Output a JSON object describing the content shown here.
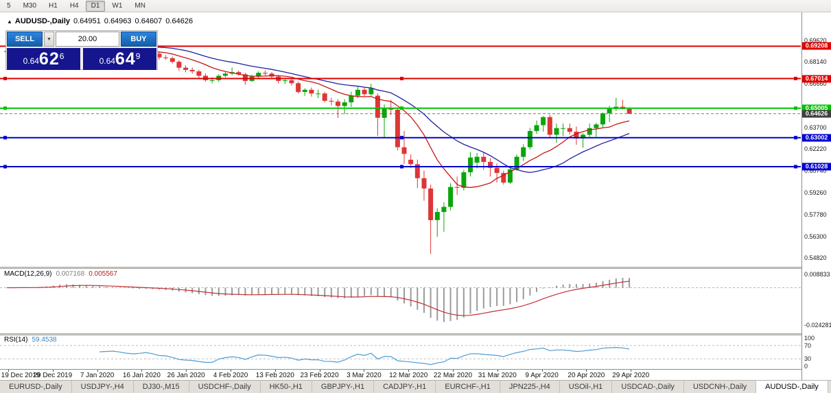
{
  "toolbar": {
    "periods": [
      "5",
      "M30",
      "H1",
      "H4",
      "D1",
      "W1",
      "MN"
    ],
    "active": "D1"
  },
  "header": {
    "symbol": "AUDUSD-,Daily",
    "open": "0.64951",
    "high": "0.64963",
    "low": "0.64607",
    "close": "0.64626"
  },
  "trade_panel": {
    "sell": "SELL",
    "buy": "BUY",
    "volume": "20.00",
    "sell_price": {
      "base": "0.64",
      "big": "62",
      "sup": "6"
    },
    "buy_price": {
      "base": "0.64",
      "big": "64",
      "sup": "9"
    }
  },
  "chart_data": {
    "type": "candlestick",
    "symbol": "AUDUSD",
    "timeframe": "Daily",
    "colors": {
      "up": "#0BA50B",
      "down": "#DE3636",
      "bid_line": "#777777"
    },
    "y_axis": {
      "range": [
        0.5423,
        0.7151
      ],
      "labels": [
        "0.69620",
        "0.68140",
        "0.66660",
        "0.63700",
        "0.62220",
        "0.60740",
        "0.59260",
        "0.57780",
        "0.56300",
        "0.54820"
      ]
    },
    "x_labels": [
      "19 Dec 2019",
      "29 Dec 2019",
      "7 Jan 2020",
      "16 Jan 2020",
      "26 Jan 2020",
      "4 Feb 2020",
      "13 Feb 2020",
      "23 Feb 2020",
      "3 Mar 2020",
      "12 Mar 2020",
      "22 Mar 2020",
      "31 Mar 2020",
      "9 Apr 2020",
      "20 Apr 2020",
      "29 Apr 2020"
    ],
    "hlines": [
      {
        "price": 0.69208,
        "label": "0.69208",
        "color": "#E00000",
        "handles": false
      },
      {
        "price": 0.67014,
        "label": "0.67014",
        "color": "#E00000",
        "handles": true
      },
      {
        "price": 0.65005,
        "label": "0.65005",
        "color": "#00C400",
        "handles": true
      },
      {
        "price": 0.63002,
        "label": "0.63002",
        "color": "#0000D0",
        "handles": true
      },
      {
        "price": 0.61028,
        "label": "0.61028",
        "color": "#0000D0",
        "handles": true
      }
    ],
    "bid": {
      "price": 0.64626,
      "label": "0.64626",
      "color": "#3F3F3F"
    },
    "moving_averages": [
      {
        "period": 10,
        "color": "#C81414"
      },
      {
        "period": 21,
        "color": "#2020A0"
      }
    ],
    "macd": {
      "label": "MACD(12,26,9)",
      "main_value": "0.007168",
      "signal_value": "0.005567",
      "params": [
        12,
        26,
        9
      ],
      "axis_labels": [
        "0.008833",
        "-0.024281"
      ],
      "range": [
        -0.0295,
        0.0122
      ],
      "histogram_color": "#9a9a9a",
      "signal_color": "#C03030"
    },
    "rsi": {
      "label": "RSI(14)",
      "value": "59.4538",
      "period": 14,
      "levels": [
        100,
        70,
        30,
        0
      ],
      "dashed_levels": [
        70,
        30
      ],
      "color": "#4B9CD3",
      "range": [
        0,
        100
      ]
    },
    "candles": [
      [
        0.688,
        0.6897,
        0.6862,
        0.689
      ],
      [
        0.689,
        0.6906,
        0.6878,
        0.6895
      ],
      [
        0.6895,
        0.6916,
        0.6886,
        0.6905
      ],
      [
        0.6905,
        0.6917,
        0.6884,
        0.6898
      ],
      [
        0.6898,
        0.6921,
        0.6889,
        0.691
      ],
      [
        0.691,
        0.6936,
        0.6901,
        0.6925
      ],
      [
        0.6925,
        0.6951,
        0.6914,
        0.694
      ],
      [
        0.694,
        0.6996,
        0.6931,
        0.6988
      ],
      [
        0.6988,
        0.7026,
        0.6979,
        0.701
      ],
      [
        0.701,
        0.7021,
        0.6973,
        0.6985
      ],
      [
        0.6985,
        0.6991,
        0.6938,
        0.695
      ],
      [
        0.695,
        0.6971,
        0.6924,
        0.6935
      ],
      [
        0.6935,
        0.6956,
        0.6919,
        0.693
      ],
      [
        0.693,
        0.6941,
        0.6893,
        0.6905
      ],
      [
        0.6905,
        0.6921,
        0.6884,
        0.6895
      ],
      [
        0.6895,
        0.6916,
        0.6884,
        0.69
      ],
      [
        0.69,
        0.6921,
        0.6889,
        0.6905
      ],
      [
        0.6905,
        0.6916,
        0.6879,
        0.6895
      ],
      [
        0.6895,
        0.6906,
        0.6869,
        0.688
      ],
      [
        0.688,
        0.6891,
        0.6854,
        0.687
      ],
      [
        0.687,
        0.6891,
        0.6859,
        0.6875
      ],
      [
        0.6875,
        0.6896,
        0.6864,
        0.6885
      ],
      [
        0.6885,
        0.6896,
        0.6859,
        0.687
      ],
      [
        0.687,
        0.6881,
        0.6829,
        0.6845
      ],
      [
        0.6845,
        0.6861,
        0.6829,
        0.684
      ],
      [
        0.684,
        0.6851,
        0.6804,
        0.6815
      ],
      [
        0.6815,
        0.6826,
        0.6754,
        0.6775
      ],
      [
        0.6775,
        0.6791,
        0.6744,
        0.676
      ],
      [
        0.676,
        0.6776,
        0.6734,
        0.675
      ],
      [
        0.675,
        0.6761,
        0.6699,
        0.672
      ],
      [
        0.672,
        0.6736,
        0.6681,
        0.669
      ],
      [
        0.669,
        0.6711,
        0.6669,
        0.669
      ],
      [
        0.669,
        0.6731,
        0.6679,
        0.672
      ],
      [
        0.672,
        0.6751,
        0.6709,
        0.6735
      ],
      [
        0.6735,
        0.6776,
        0.6724,
        0.6745
      ],
      [
        0.6745,
        0.6756,
        0.6719,
        0.673
      ],
      [
        0.673,
        0.6741,
        0.6659,
        0.6685
      ],
      [
        0.6685,
        0.6726,
        0.6679,
        0.6715
      ],
      [
        0.6715,
        0.6751,
        0.6704,
        0.674
      ],
      [
        0.674,
        0.6756,
        0.6719,
        0.6735
      ],
      [
        0.6735,
        0.6746,
        0.6704,
        0.6715
      ],
      [
        0.6715,
        0.6726,
        0.6669,
        0.6685
      ],
      [
        0.6685,
        0.6701,
        0.6664,
        0.669
      ],
      [
        0.669,
        0.6701,
        0.6654,
        0.667
      ],
      [
        0.667,
        0.6681,
        0.6599,
        0.661
      ],
      [
        0.661,
        0.6636,
        0.6584,
        0.6625
      ],
      [
        0.6625,
        0.6641,
        0.6579,
        0.66
      ],
      [
        0.66,
        0.6626,
        0.6569,
        0.66
      ],
      [
        0.66,
        0.6611,
        0.6539,
        0.655
      ],
      [
        0.655,
        0.6571,
        0.6519,
        0.6545
      ],
      [
        0.6545,
        0.6561,
        0.6434,
        0.6515
      ],
      [
        0.6515,
        0.6561,
        0.6459,
        0.654
      ],
      [
        0.654,
        0.6611,
        0.6509,
        0.6585
      ],
      [
        0.6585,
        0.6646,
        0.6569,
        0.6625
      ],
      [
        0.6625,
        0.6641,
        0.6584,
        0.6595
      ],
      [
        0.6595,
        0.6666,
        0.6584,
        0.6635
      ],
      [
        0.6585,
        0.6601,
        0.6313,
        0.6435
      ],
      [
        0.6435,
        0.6526,
        0.6301,
        0.65
      ],
      [
        0.65,
        0.6556,
        0.6454,
        0.649
      ],
      [
        0.649,
        0.6501,
        0.6214,
        0.6235
      ],
      [
        0.6235,
        0.6346,
        0.6123,
        0.619
      ],
      [
        0.615,
        0.6186,
        0.6094,
        0.612
      ],
      [
        0.612,
        0.6151,
        0.5958,
        0.6025
      ],
      [
        0.6025,
        0.6076,
        0.5872,
        0.5955
      ],
      [
        0.5955,
        0.5981,
        0.551,
        0.574
      ],
      [
        0.574,
        0.5821,
        0.5626,
        0.5795
      ],
      [
        0.5795,
        0.5861,
        0.5661,
        0.583
      ],
      [
        0.583,
        0.5991,
        0.5806,
        0.5965
      ],
      [
        0.5965,
        0.6036,
        0.5911,
        0.596
      ],
      [
        0.596,
        0.6081,
        0.5941,
        0.6065
      ],
      [
        0.6065,
        0.6201,
        0.6036,
        0.6165
      ],
      [
        0.613,
        0.6196,
        0.6091,
        0.617
      ],
      [
        0.617,
        0.6201,
        0.6081,
        0.6135
      ],
      [
        0.6135,
        0.6161,
        0.6036,
        0.6095
      ],
      [
        0.6095,
        0.6126,
        0.5996,
        0.606
      ],
      [
        0.606,
        0.6076,
        0.5981,
        0.5995
      ],
      [
        0.5995,
        0.6096,
        0.5986,
        0.6085
      ],
      [
        0.6085,
        0.6186,
        0.6076,
        0.617
      ],
      [
        0.617,
        0.6256,
        0.6141,
        0.6235
      ],
      [
        0.6235,
        0.6366,
        0.6221,
        0.6345
      ],
      [
        0.6345,
        0.6416,
        0.6326,
        0.6385
      ],
      [
        0.6385,
        0.6446,
        0.6341,
        0.644
      ],
      [
        0.644,
        0.6456,
        0.6301,
        0.632
      ],
      [
        0.632,
        0.6396,
        0.6266,
        0.6365
      ],
      [
        0.6365,
        0.6396,
        0.6311,
        0.6365
      ],
      [
        0.6365,
        0.6396,
        0.6321,
        0.634
      ],
      [
        0.634,
        0.6376,
        0.6251,
        0.6295
      ],
      [
        0.6295,
        0.6331,
        0.6231,
        0.632
      ],
      [
        0.632,
        0.6396,
        0.6306,
        0.6365
      ],
      [
        0.6365,
        0.6401,
        0.6306,
        0.639
      ],
      [
        0.639,
        0.6471,
        0.6371,
        0.6465
      ],
      [
        0.6465,
        0.6516,
        0.6406,
        0.6495
      ],
      [
        0.6495,
        0.657,
        0.6481,
        0.651
      ],
      [
        0.651,
        0.6557,
        0.6491,
        0.6495
      ],
      [
        0.64951,
        0.64963,
        0.64607,
        0.64626
      ]
    ]
  },
  "bottom_tabs": {
    "items": [
      "EURUSD-,Daily",
      "USDJPY-,H4",
      "DJ30-,M15",
      "USDCHF-,Daily",
      "HK50-,H1",
      "GBPJPY-,H1",
      "CADJPY-,H1",
      "EURCHF-,H1",
      "JPN225-,H4",
      "USOil-,H1",
      "USDCAD-,Daily",
      "USDCNH-,Daily",
      "AUDUSD-,Daily"
    ],
    "active_index": 12
  }
}
